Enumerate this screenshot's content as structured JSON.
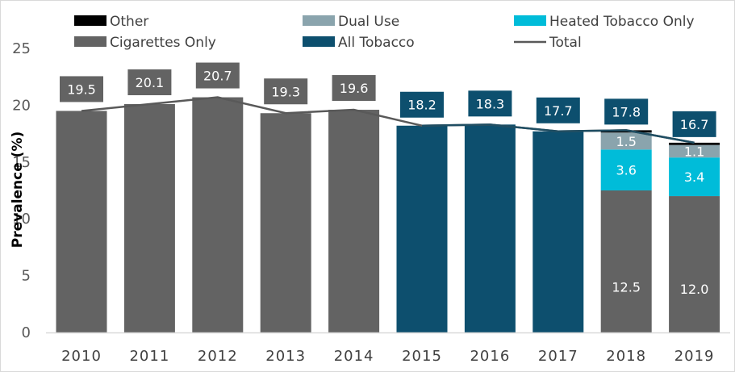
{
  "chart_data": {
    "type": "bar",
    "stacked": true,
    "title": "",
    "xlabel": "",
    "ylabel": "Prevalence (%)",
    "ylim": [
      0,
      25
    ],
    "yticks": [
      0,
      5,
      10,
      15,
      20,
      25
    ],
    "yticks_shown": [
      "0",
      "5",
      "20",
      "25"
    ],
    "grid": false,
    "legend_position": "top",
    "categories": [
      "2010",
      "2011",
      "2012",
      "2013",
      "2014",
      "2015",
      "2016",
      "2017",
      "2018",
      "2019"
    ],
    "series": [
      {
        "name": "Cigarettes Only",
        "color": "#636363",
        "values": [
          19.5,
          20.1,
          20.7,
          19.3,
          19.6,
          null,
          null,
          null,
          12.5,
          12.0
        ],
        "labels": [
          null,
          null,
          null,
          null,
          null,
          null,
          null,
          null,
          "12.5",
          "12.0"
        ]
      },
      {
        "name": "Heated Tobacco Only",
        "color": "#00bcd9",
        "values": [
          null,
          null,
          null,
          null,
          null,
          null,
          null,
          null,
          3.6,
          3.4
        ],
        "labels": [
          null,
          null,
          null,
          null,
          null,
          null,
          null,
          null,
          "3.6",
          "3.4"
        ]
      },
      {
        "name": "Dual Use",
        "color": "#8aa4ad",
        "values": [
          null,
          null,
          null,
          null,
          null,
          null,
          null,
          null,
          1.5,
          1.1
        ],
        "labels": [
          null,
          null,
          null,
          null,
          null,
          null,
          null,
          null,
          "1.5",
          "1.1"
        ]
      },
      {
        "name": "Other",
        "color": "#000000",
        "values": [
          null,
          null,
          null,
          null,
          null,
          null,
          null,
          null,
          0.2,
          0.2
        ],
        "labels": [
          null,
          null,
          null,
          null,
          null,
          null,
          null,
          null,
          null,
          null
        ]
      },
      {
        "name": "All Tobacco",
        "color": "#0d4f6e",
        "values": [
          null,
          null,
          null,
          null,
          null,
          18.2,
          18.3,
          17.7,
          null,
          null
        ],
        "labels": [
          null,
          null,
          null,
          null,
          null,
          null,
          null,
          null,
          null,
          null
        ]
      }
    ],
    "total": {
      "name": "Total",
      "color": "#595959",
      "values": [
        19.5,
        20.1,
        20.7,
        19.3,
        19.6,
        18.2,
        18.3,
        17.7,
        17.8,
        16.7
      ],
      "labels": [
        "19.5",
        "20.1",
        "20.7",
        "19.3",
        "19.6",
        "18.2",
        "18.3",
        "17.7",
        "17.8",
        "16.7"
      ],
      "label_colors": [
        "#636363",
        "#636363",
        "#636363",
        "#636363",
        "#636363",
        "#0d4f6e",
        "#0d4f6e",
        "#0d4f6e",
        "#0d4f6e",
        "#0d4f6e"
      ]
    },
    "legend": [
      {
        "name": "Other",
        "kind": "box",
        "color": "#000000"
      },
      {
        "name": "Dual Use",
        "kind": "box",
        "color": "#8aa4ad"
      },
      {
        "name": "Heated Tobacco Only",
        "kind": "box",
        "color": "#00bcd9"
      },
      {
        "name": "Cigarettes Only",
        "kind": "box",
        "color": "#636363"
      },
      {
        "name": "All Tobacco",
        "kind": "box",
        "color": "#0d4f6e"
      },
      {
        "name": "Total",
        "kind": "line",
        "color": "#595959"
      }
    ]
  }
}
